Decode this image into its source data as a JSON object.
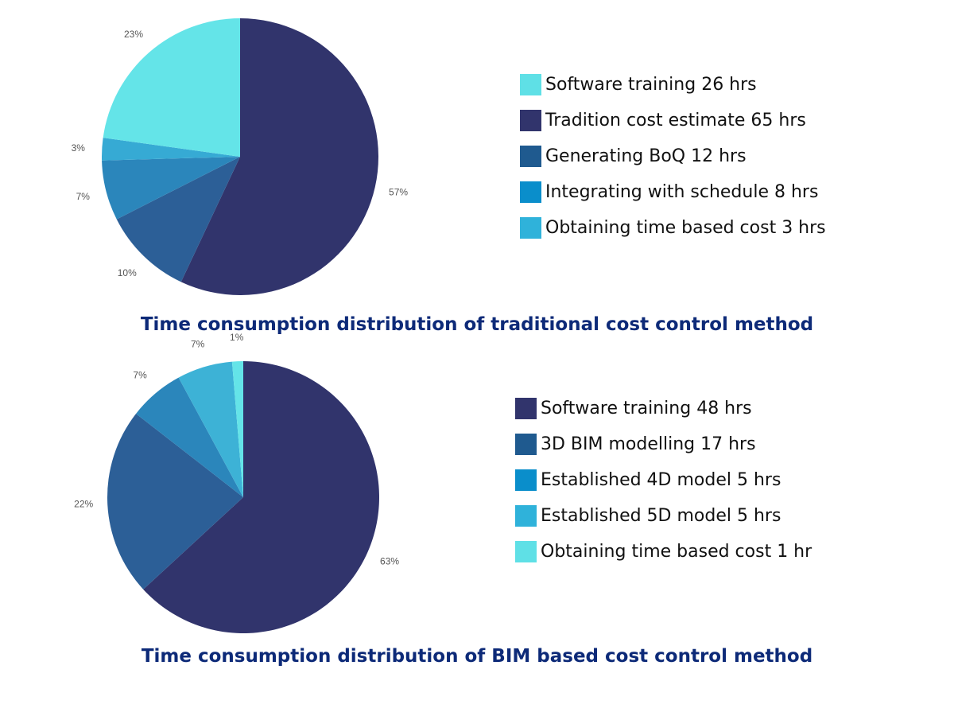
{
  "chart_data": [
    {
      "type": "pie",
      "title": "Time consumption distribution of traditional cost control method",
      "legend_placement": "right",
      "slices": [
        {
          "label": "Tradition cost estimate 65 hrs",
          "value": 65,
          "percent_label": "57%",
          "color": "#31346c"
        },
        {
          "label": "Generating BoQ 12 hrs",
          "value": 12,
          "percent_label": "10%",
          "color": "#2c5f97"
        },
        {
          "label": "Integrating with schedule 8 hrs",
          "value": 8,
          "percent_label": "7%",
          "color": "#2b86bb"
        },
        {
          "label": "Obtaining time based cost 3 hrs",
          "value": 3,
          "percent_label": "3%",
          "color": "#36aad4"
        },
        {
          "label": "Software training 26 hrs",
          "value": 26,
          "percent_label": "23%",
          "color": "#64e4e8"
        }
      ],
      "legend": [
        {
          "label": "Software training 26 hrs",
          "color": "#5fe0e6"
        },
        {
          "label": "Tradition cost estimate 65 hrs",
          "color": "#31346c"
        },
        {
          "label": "Generating BoQ 12 hrs",
          "color": "#1f5a8f"
        },
        {
          "label": "Integrating with schedule 8 hrs",
          "color": "#0a8ecb"
        },
        {
          "label": "Obtaining time based cost 3 hrs",
          "color": "#2fb2da"
        }
      ]
    },
    {
      "type": "pie",
      "title": "Time consumption distribution of BIM based cost control method",
      "legend_placement": "right",
      "slices": [
        {
          "label": "Software training 48 hrs",
          "value": 48,
          "percent_label": "63%",
          "color": "#31346c"
        },
        {
          "label": "3D BIM modelling 17 hrs",
          "value": 17,
          "percent_label": "22%",
          "color": "#2c5f97"
        },
        {
          "label": "Established 4D model 5 hrs",
          "value": 5,
          "percent_label": "7%",
          "color": "#2b86bb"
        },
        {
          "label": "Established 5D model 5 hrs",
          "value": 5,
          "percent_label": "7%",
          "color": "#3db2d6"
        },
        {
          "label": "Obtaining time based cost 1 hr",
          "value": 1,
          "percent_label": "1%",
          "color": "#64e4e8"
        }
      ],
      "legend": [
        {
          "label": "Software training 48 hrs",
          "color": "#31346c"
        },
        {
          "label": "3D BIM modelling 17 hrs",
          "color": "#1f5a8f"
        },
        {
          "label": "Established 4D model 5 hrs",
          "color": "#0a8ecb"
        },
        {
          "label": "Established 5D model 5 hrs",
          "color": "#2fb2da"
        },
        {
          "label": "Obtaining time based cost 1 hr",
          "color": "#5fe0e6"
        }
      ]
    }
  ]
}
